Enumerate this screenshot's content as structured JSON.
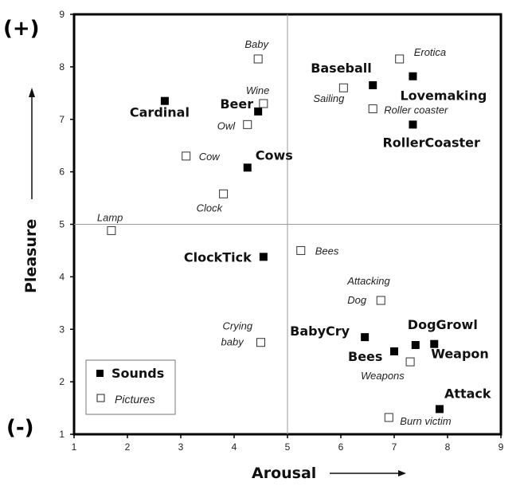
{
  "chart_data": {
    "type": "scatter",
    "title": "",
    "xlabel": "Arousal",
    "ylabel": "Pleasure",
    "xlim": [
      1,
      9
    ],
    "ylim": [
      1,
      9
    ],
    "xticks": [
      1,
      2,
      3,
      4,
      5,
      6,
      7,
      8,
      9
    ],
    "yticks": [
      1,
      2,
      3,
      4,
      5,
      6,
      7,
      8,
      9
    ],
    "midlines": {
      "x": 5,
      "y": 5
    },
    "grid": false,
    "legend_position": "bottom-left",
    "sign_top": "(+)",
    "sign_bottom": "(-)",
    "series": [
      {
        "name": "Sounds",
        "marker": "filled-square",
        "color": "#000000",
        "points": [
          {
            "label": "Cardinal",
            "x": 2.7,
            "y": 7.35
          },
          {
            "label": "Beer",
            "x": 4.45,
            "y": 7.15
          },
          {
            "label": "Cows",
            "x": 4.25,
            "y": 6.08
          },
          {
            "label": "Baseball",
            "x": 6.6,
            "y": 7.65
          },
          {
            "label": "Lovemaking",
            "x": 7.35,
            "y": 7.82
          },
          {
            "label": "RollerCoaster",
            "x": 7.35,
            "y": 6.9
          },
          {
            "label": "ClockTick",
            "x": 4.55,
            "y": 4.38
          },
          {
            "label": "BabyCry",
            "x": 6.45,
            "y": 2.85
          },
          {
            "label": "Bees",
            "x": 7.0,
            "y": 2.58
          },
          {
            "label": "DogGrowl",
            "x": 7.4,
            "y": 2.7
          },
          {
            "label": "Weapon",
            "x": 7.75,
            "y": 2.72
          },
          {
            "label": "Attack",
            "x": 7.85,
            "y": 1.48
          }
        ]
      },
      {
        "name": "Pictures",
        "marker": "open-square",
        "color": "#000000",
        "points": [
          {
            "label": "Baby",
            "x": 4.45,
            "y": 8.15
          },
          {
            "label": "Wine",
            "x": 4.55,
            "y": 7.3
          },
          {
            "label": "Owl",
            "x": 4.25,
            "y": 6.9
          },
          {
            "label": "Cow",
            "x": 3.1,
            "y": 6.3
          },
          {
            "label": "Clock",
            "x": 3.8,
            "y": 5.58
          },
          {
            "label": "Lamp",
            "x": 1.7,
            "y": 4.88
          },
          {
            "label": "Erotica",
            "x": 7.1,
            "y": 8.15
          },
          {
            "label": "Sailing",
            "x": 6.05,
            "y": 7.6
          },
          {
            "label": "Roller coaster",
            "x": 6.6,
            "y": 7.2
          },
          {
            "label": "Bees",
            "x": 5.25,
            "y": 4.5
          },
          {
            "label": "Attacking Dog",
            "x": 6.75,
            "y": 3.55
          },
          {
            "label": "Crying baby",
            "x": 4.5,
            "y": 2.75
          },
          {
            "label": "Weapons",
            "x": 7.3,
            "y": 2.38
          },
          {
            "label": "Burn victim",
            "x": 6.9,
            "y": 1.32
          }
        ]
      }
    ]
  }
}
